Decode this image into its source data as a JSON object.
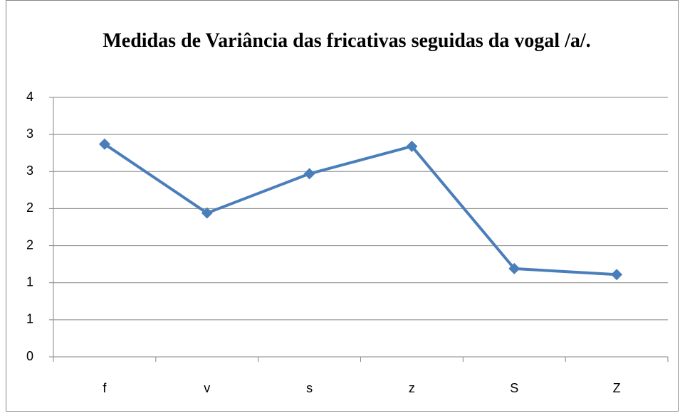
{
  "chart_data": {
    "type": "line",
    "title": "Medidas de Variância das fricativas seguidas da vogal /a/.",
    "categories": [
      "f",
      "v",
      "s",
      "z",
      "S",
      "Z"
    ],
    "series": [
      {
        "name": "Variância",
        "color": "#4a7ebb",
        "values": [
          2.87,
          1.94,
          2.47,
          2.84,
          1.19,
          1.11
        ]
      }
    ],
    "ylim": [
      0,
      3.5
    ],
    "yticks": [
      0,
      {
        "value": 0.5,
        "label": "1"
      },
      1,
      {
        "value": 1.5,
        "label": "2"
      },
      2,
      {
        "value": 2.5,
        "label": "3"
      },
      3,
      {
        "value": 3.5,
        "label": "4"
      }
    ],
    "grid": true,
    "legend": false
  }
}
